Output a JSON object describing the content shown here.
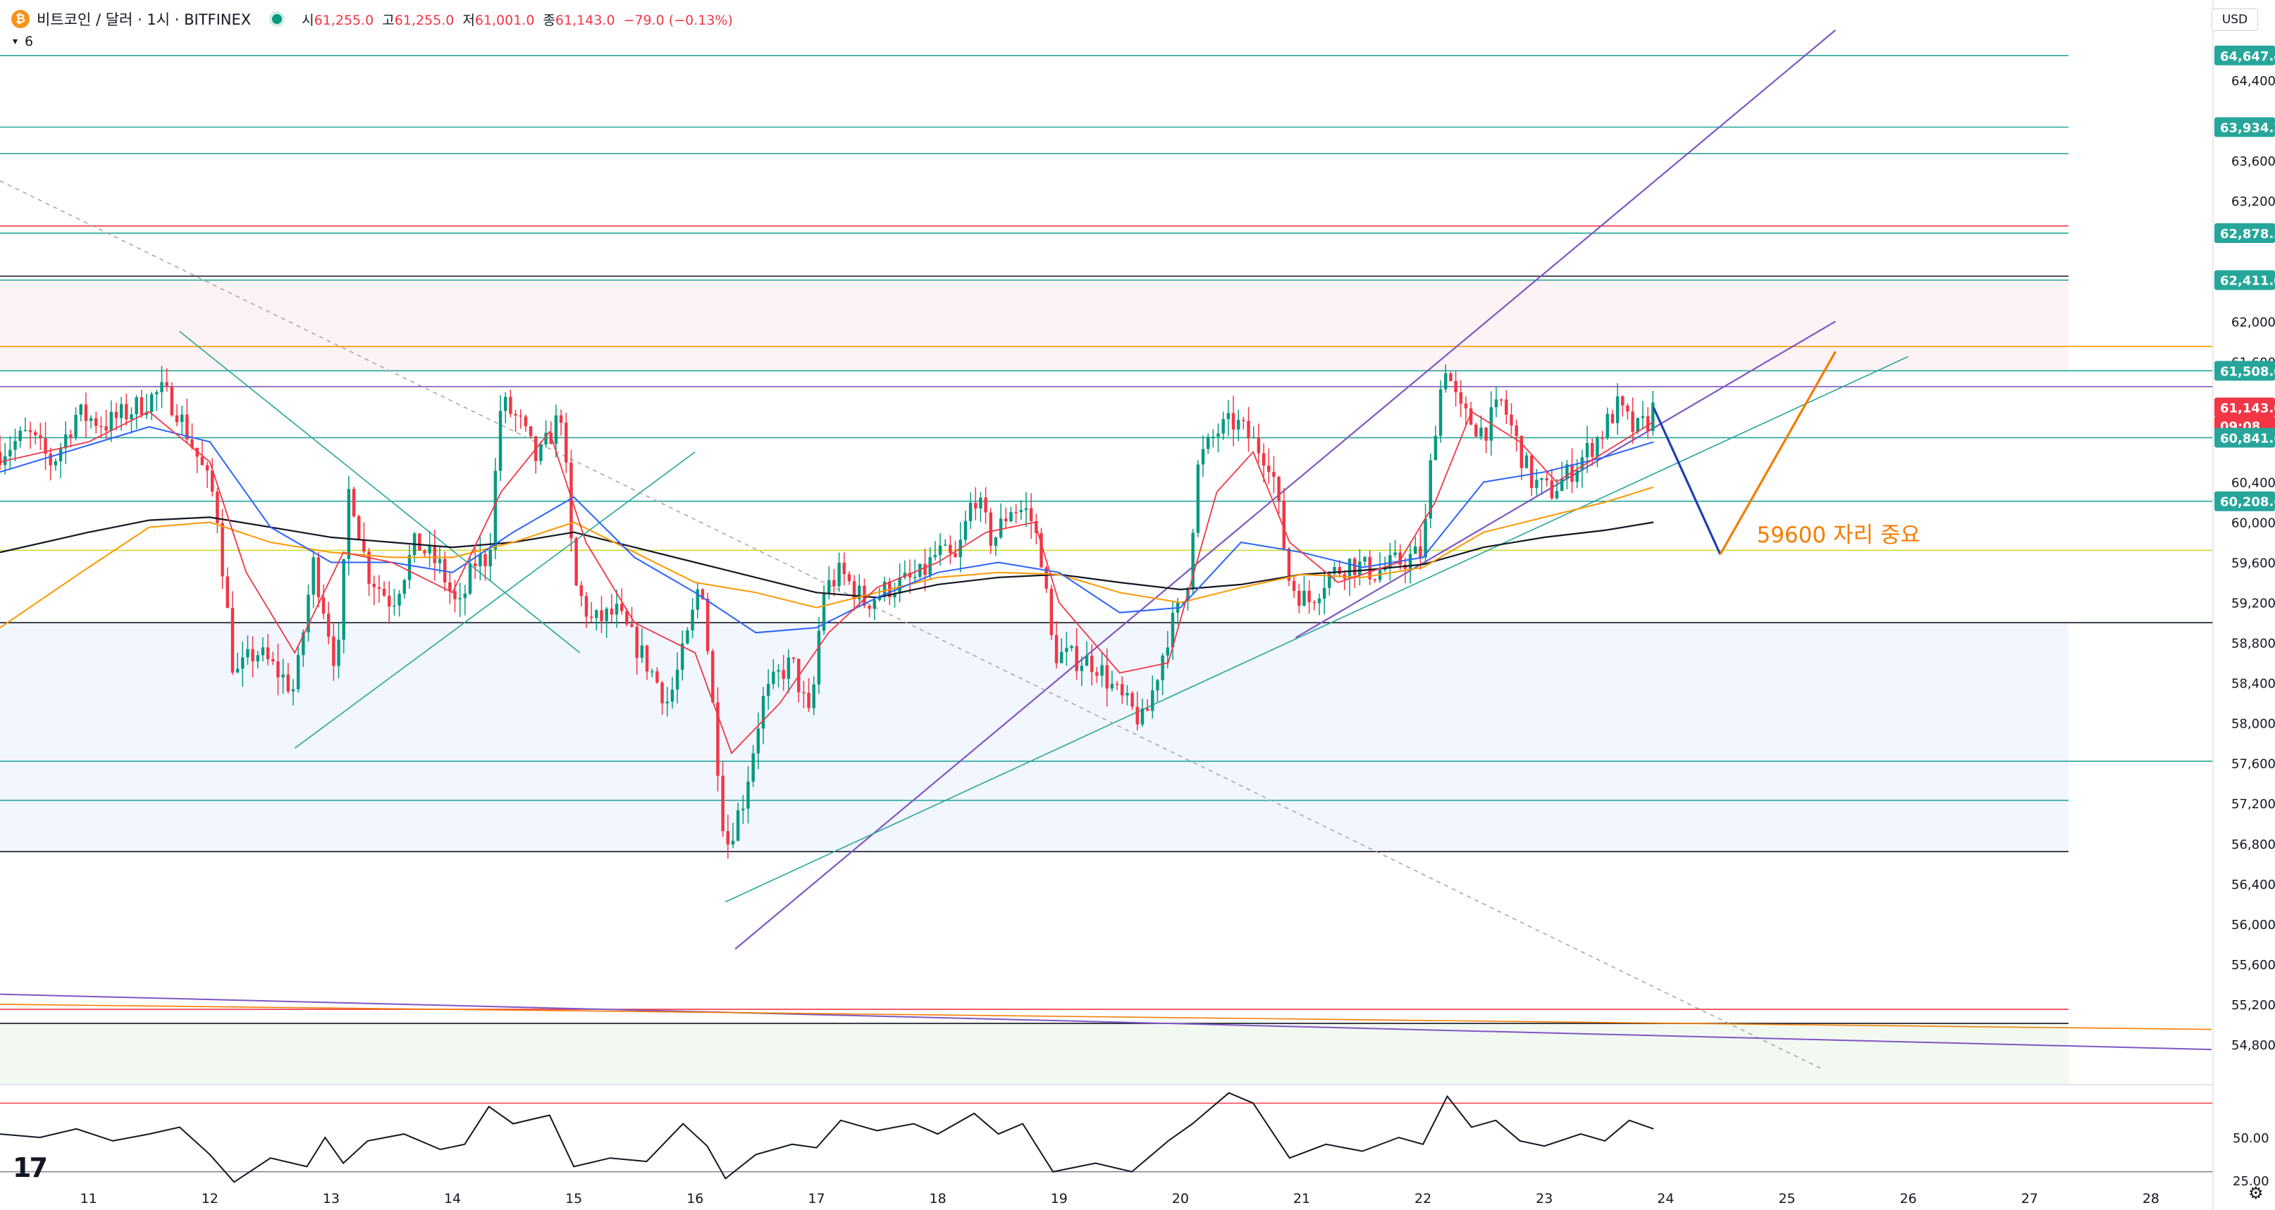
{
  "header": {
    "coin_icon": "bitcoin-icon",
    "symbol": "비트코인 / 달러 · 1시 · BITFINEX",
    "market_status_color": "#089981",
    "open_label": "시",
    "open_value": "61,255.0",
    "high_label": "고",
    "high_value": "61,255.0",
    "low_label": "저",
    "low_value": "61,001.0",
    "close_label": "종",
    "close_value": "61,143.0",
    "change": "−79.0 (−0.13%)"
  },
  "indicator_toggle": {
    "icon": "chevron-down-icon",
    "count": "6"
  },
  "currency_button": "USD",
  "logo_text": "17",
  "settings_icon": "gear-icon",
  "colors": {
    "up": "#089981",
    "down": "#f23645",
    "ema_blue": "#2962ff",
    "ema_orange": "#ff9800",
    "ema_black": "#131722",
    "channel": "#7e57c2",
    "annotation": "#f57c00"
  },
  "chart_data": {
    "type": "candlestick",
    "x_axis_labels": [
      "11",
      "12",
      "13",
      "14",
      "15",
      "16",
      "17",
      "18",
      "19",
      "20",
      "21",
      "22",
      "23",
      "24",
      "25",
      "26",
      "27",
      "28"
    ],
    "x_domain_days": [
      10.27,
      28.5
    ],
    "ylim": [
      54400,
      65200
    ],
    "y_ticks": [
      "64,400.0",
      "63,600.0",
      "63,200.0",
      "62,000.0",
      "61,600.0",
      "60,400.0",
      "60,000.0",
      "59,600.0",
      "59,200.0",
      "58,800.0",
      "58,400.0",
      "58,000.0",
      "57,600.0",
      "57,200.0",
      "56,800.0",
      "56,400.0",
      "56,000.0",
      "55,600.0",
      "55,200.0",
      "54,800.0"
    ],
    "y_tick_values": [
      64400,
      63600,
      63200,
      62000,
      61600,
      60400,
      60000,
      59600,
      59200,
      58800,
      58400,
      58000,
      57600,
      57200,
      56800,
      56400,
      56000,
      55600,
      55200,
      54800
    ],
    "price_labels": [
      {
        "text": "64,647.4",
        "value": 64647.4,
        "color": "#26a69a"
      },
      {
        "text": "63,934.2",
        "value": 63934.2,
        "color": "#26a69a"
      },
      {
        "text": "62,878.3",
        "value": 62878.3,
        "color": "#26a69a"
      },
      {
        "text": "62,411.0",
        "value": 62411.0,
        "color": "#26a69a"
      },
      {
        "text": "61,508.0",
        "value": 61508.0,
        "color": "#26a69a"
      },
      {
        "text": "61,143.0",
        "value": 61143.0,
        "color": "#f23645"
      },
      {
        "text": "09:08",
        "value": 60960,
        "color": "#f23645"
      },
      {
        "text": "60,841.6",
        "value": 60841.6,
        "color": "#26a69a"
      },
      {
        "text": "60,208.6",
        "value": 60208.6,
        "color": "#26a69a"
      }
    ],
    "horizontal_levels": [
      {
        "value": 64647.4,
        "color": "#26a69a"
      },
      {
        "value": 63934.2,
        "color": "#26a69a"
      },
      {
        "value": 63670,
        "color": "#26a69a"
      },
      {
        "value": 62950,
        "color": "#f23645"
      },
      {
        "value": 62878.3,
        "color": "#26a69a"
      },
      {
        "value": 62450,
        "color": "#131722"
      },
      {
        "value": 62411.0,
        "color": "#26a69a"
      },
      {
        "value": 61750,
        "color": "#ff9800"
      },
      {
        "value": 61508.0,
        "color": "#26a69a"
      },
      {
        "value": 61350,
        "color": "#7e57c2"
      },
      {
        "value": 60841.6,
        "color": "#26a69a"
      },
      {
        "value": 60208.6,
        "color": "#26a69a"
      },
      {
        "value": 59720,
        "color": "#cddc39"
      },
      {
        "value": 59000,
        "color": "#131722"
      },
      {
        "value": 57620,
        "color": "#26a69a"
      },
      {
        "value": 57230,
        "color": "#26a69a"
      },
      {
        "value": 56720,
        "color": "#131722"
      },
      {
        "value": 55150,
        "color": "#f23645"
      },
      {
        "value": 55010,
        "color": "#131722"
      }
    ],
    "zones": [
      {
        "from": 61510,
        "to": 62411,
        "color": "rgba(242,54,69,0.06)"
      },
      {
        "from": 56720,
        "to": 59000,
        "color": "rgba(41,98,255,0.06)"
      },
      {
        "from": 54400,
        "to": 55010,
        "color": "rgba(76,175,80,0.08)"
      }
    ],
    "trendlines": [
      {
        "from": [
          16.33,
          55750
        ],
        "to": [
          25.4,
          64900
        ],
        "color": "#7e57c2",
        "width": 2.2
      },
      {
        "from": [
          20.95,
          58850
        ],
        "to": [
          25.4,
          62000
        ],
        "color": "#7e57c2",
        "width": 2.2
      },
      {
        "from": [
          16.25,
          56220
        ],
        "to": [
          26.0,
          61650
        ],
        "color": "#26a69a",
        "width": 1.6
      },
      {
        "from": [
          12.7,
          57750
        ],
        "to": [
          16.0,
          60700
        ],
        "color": "#26a69a",
        "width": 1.6
      },
      {
        "from": [
          11.75,
          61900
        ],
        "to": [
          15.05,
          58700
        ],
        "color": "#26a69a",
        "width": 1.6
      },
      {
        "from": [
          10.27,
          63400
        ],
        "to": [
          25.3,
          54550
        ],
        "color": "#9e9e9e",
        "width": 1.4,
        "dash": true
      },
      {
        "from": [
          10.27,
          55300
        ],
        "to": [
          28.5,
          54750
        ],
        "color": "#7e57c2",
        "width": 2
      },
      {
        "from": [
          10.27,
          55200
        ],
        "to": [
          28.5,
          54950
        ],
        "color": "#f57c00",
        "width": 1.6
      }
    ],
    "forecast_path": [
      {
        "from": [
          23.9,
          61143
        ],
        "to": [
          24.45,
          59680
        ],
        "color": "#1e3fae"
      },
      {
        "from": [
          24.45,
          59680
        ],
        "to": [
          25.4,
          61700
        ],
        "color": "#f57c00"
      }
    ],
    "annotation": {
      "text": "59600 자리 중요",
      "x": 24.75,
      "y": 59800
    },
    "pivots": [
      [
        10.27,
        60700
      ],
      [
        10.5,
        60880
      ],
      [
        10.7,
        60580
      ],
      [
        10.9,
        61080
      ],
      [
        11.15,
        60980
      ],
      [
        11.4,
        61150
      ],
      [
        11.6,
        61300
      ],
      [
        11.72,
        61150
      ],
      [
        11.88,
        60700
      ],
      [
        12.05,
        60200
      ],
      [
        12.2,
        58450
      ],
      [
        12.38,
        58720
      ],
      [
        12.55,
        58520
      ],
      [
        12.7,
        58320
      ],
      [
        12.85,
        59600
      ],
      [
        12.95,
        59100
      ],
      [
        13.05,
        58500
      ],
      [
        13.15,
        60400
      ],
      [
        13.3,
        59500
      ],
      [
        13.5,
        59200
      ],
      [
        13.7,
        59800
      ],
      [
        13.9,
        59550
      ],
      [
        14.05,
        59100
      ],
      [
        14.18,
        59600
      ],
      [
        14.3,
        59650
      ],
      [
        14.4,
        61200
      ],
      [
        14.55,
        61000
      ],
      [
        14.7,
        60600
      ],
      [
        14.9,
        61100
      ],
      [
        15.0,
        59400
      ],
      [
        15.15,
        59000
      ],
      [
        15.35,
        59100
      ],
      [
        15.6,
        58600
      ],
      [
        15.78,
        58200
      ],
      [
        15.95,
        58900
      ],
      [
        16.05,
        59500
      ],
      [
        16.15,
        58100
      ],
      [
        16.25,
        56750
      ],
      [
        16.4,
        57250
      ],
      [
        16.55,
        58200
      ],
      [
        16.7,
        58500
      ],
      [
        16.8,
        58600
      ],
      [
        16.95,
        58000
      ],
      [
        17.05,
        59300
      ],
      [
        17.2,
        59500
      ],
      [
        17.4,
        59200
      ],
      [
        17.6,
        59350
      ],
      [
        17.85,
        59450
      ],
      [
        18.0,
        59700
      ],
      [
        18.15,
        59600
      ],
      [
        18.3,
        60300
      ],
      [
        18.45,
        59800
      ],
      [
        18.6,
        60150
      ],
      [
        18.75,
        60100
      ],
      [
        18.85,
        59700
      ],
      [
        18.95,
        58700
      ],
      [
        19.1,
        58650
      ],
      [
        19.3,
        58600
      ],
      [
        19.5,
        58250
      ],
      [
        19.7,
        58000
      ],
      [
        19.9,
        58900
      ],
      [
        20.05,
        59300
      ],
      [
        20.15,
        60600
      ],
      [
        20.3,
        60900
      ],
      [
        20.45,
        61000
      ],
      [
        20.6,
        60800
      ],
      [
        20.75,
        60600
      ],
      [
        20.9,
        59400
      ],
      [
        21.05,
        59200
      ],
      [
        21.2,
        59450
      ],
      [
        21.4,
        59600
      ],
      [
        21.6,
        59500
      ],
      [
        21.8,
        59600
      ],
      [
        22.0,
        59700
      ],
      [
        22.08,
        60800
      ],
      [
        22.18,
        61600
      ],
      [
        22.3,
        61100
      ],
      [
        22.5,
        60900
      ],
      [
        22.65,
        61200
      ],
      [
        22.8,
        60700
      ],
      [
        22.9,
        60400
      ],
      [
        23.05,
        60300
      ],
      [
        23.25,
        60550
      ],
      [
        23.45,
        60850
      ],
      [
        23.6,
        61150
      ],
      [
        23.75,
        60900
      ],
      [
        23.85,
        61000
      ],
      [
        23.9,
        61143
      ]
    ],
    "ema_blue": [
      [
        10.27,
        60500
      ],
      [
        11.5,
        60950
      ],
      [
        12.0,
        60800
      ],
      [
        12.5,
        59950
      ],
      [
        13.0,
        59600
      ],
      [
        13.5,
        59600
      ],
      [
        14.0,
        59500
      ],
      [
        14.5,
        59900
      ],
      [
        15.0,
        60250
      ],
      [
        15.5,
        59650
      ],
      [
        16.0,
        59300
      ],
      [
        16.5,
        58900
      ],
      [
        17.0,
        58950
      ],
      [
        17.5,
        59250
      ],
      [
        18.0,
        59500
      ],
      [
        18.5,
        59600
      ],
      [
        19.0,
        59500
      ],
      [
        19.5,
        59100
      ],
      [
        20.0,
        59150
      ],
      [
        20.5,
        59800
      ],
      [
        21.0,
        59700
      ],
      [
        21.5,
        59550
      ],
      [
        22.0,
        59650
      ],
      [
        22.5,
        60400
      ],
      [
        23.0,
        60500
      ],
      [
        23.5,
        60650
      ],
      [
        23.9,
        60800
      ]
    ],
    "ema_orange": [
      [
        10.27,
        58950
      ],
      [
        11.0,
        59550
      ],
      [
        11.5,
        59950
      ],
      [
        12.0,
        60000
      ],
      [
        12.5,
        59800
      ],
      [
        13.0,
        59700
      ],
      [
        13.5,
        59650
      ],
      [
        14.0,
        59650
      ],
      [
        14.5,
        59800
      ],
      [
        15.0,
        60000
      ],
      [
        15.5,
        59700
      ],
      [
        16.0,
        59400
      ],
      [
        16.5,
        59300
      ],
      [
        17.0,
        59150
      ],
      [
        17.5,
        59300
      ],
      [
        18.0,
        59450
      ],
      [
        18.5,
        59500
      ],
      [
        19.0,
        59480
      ],
      [
        19.5,
        59300
      ],
      [
        20.0,
        59200
      ],
      [
        20.5,
        59350
      ],
      [
        21.0,
        59480
      ],
      [
        21.5,
        59450
      ],
      [
        22.0,
        59550
      ],
      [
        22.5,
        59900
      ],
      [
        23.0,
        60050
      ],
      [
        23.5,
        60200
      ],
      [
        23.9,
        60350
      ]
    ],
    "ema_black": [
      [
        10.27,
        59700
      ],
      [
        11.0,
        59900
      ],
      [
        11.5,
        60020
      ],
      [
        12.0,
        60050
      ],
      [
        12.5,
        59950
      ],
      [
        13.0,
        59850
      ],
      [
        13.5,
        59800
      ],
      [
        14.0,
        59750
      ],
      [
        14.5,
        59800
      ],
      [
        15.0,
        59900
      ],
      [
        15.5,
        59750
      ],
      [
        16.0,
        59600
      ],
      [
        16.5,
        59450
      ],
      [
        17.0,
        59300
      ],
      [
        17.5,
        59250
      ],
      [
        18.0,
        59380
      ],
      [
        18.5,
        59450
      ],
      [
        19.0,
        59480
      ],
      [
        19.5,
        59400
      ],
      [
        20.0,
        59330
      ],
      [
        20.5,
        59380
      ],
      [
        21.0,
        59480
      ],
      [
        21.5,
        59520
      ],
      [
        22.0,
        59580
      ],
      [
        22.5,
        59750
      ],
      [
        23.0,
        59850
      ],
      [
        23.5,
        59920
      ],
      [
        23.9,
        60000
      ]
    ],
    "ema_red": [
      [
        10.27,
        60600
      ],
      [
        11.0,
        60800
      ],
      [
        11.5,
        61100
      ],
      [
        12.0,
        60600
      ],
      [
        12.3,
        59500
      ],
      [
        12.7,
        58700
      ],
      [
        13.1,
        59700
      ],
      [
        13.5,
        59600
      ],
      [
        14.0,
        59300
      ],
      [
        14.4,
        60300
      ],
      [
        14.8,
        60900
      ],
      [
        15.1,
        59800
      ],
      [
        15.5,
        59000
      ],
      [
        16.0,
        58700
      ],
      [
        16.3,
        57700
      ],
      [
        16.7,
        58200
      ],
      [
        17.1,
        58900
      ],
      [
        17.5,
        59350
      ],
      [
        18.0,
        59600
      ],
      [
        18.4,
        59900
      ],
      [
        18.8,
        60000
      ],
      [
        19.0,
        59200
      ],
      [
        19.5,
        58500
      ],
      [
        19.9,
        58600
      ],
      [
        20.3,
        60300
      ],
      [
        20.6,
        60700
      ],
      [
        20.9,
        59800
      ],
      [
        21.3,
        59400
      ],
      [
        21.8,
        59600
      ],
      [
        22.1,
        60200
      ],
      [
        22.4,
        61100
      ],
      [
        22.8,
        60800
      ],
      [
        23.1,
        60400
      ],
      [
        23.5,
        60700
      ],
      [
        23.9,
        61000
      ]
    ],
    "rsi": {
      "ylim": [
        20,
        80
      ],
      "ticks": [
        "50.00",
        "25.00"
      ],
      "tick_values": [
        50,
        25
      ],
      "band": [
        30,
        70
      ],
      "values": [
        [
          10.27,
          52
        ],
        [
          10.6,
          50
        ],
        [
          10.9,
          55
        ],
        [
          11.2,
          48
        ],
        [
          11.5,
          52
        ],
        [
          11.75,
          56
        ],
        [
          12.0,
          40
        ],
        [
          12.2,
          24
        ],
        [
          12.5,
          38
        ],
        [
          12.8,
          33
        ],
        [
          12.95,
          50
        ],
        [
          13.1,
          35
        ],
        [
          13.3,
          48
        ],
        [
          13.6,
          52
        ],
        [
          13.9,
          43
        ],
        [
          14.1,
          46
        ],
        [
          14.3,
          68
        ],
        [
          14.5,
          58
        ],
        [
          14.8,
          63
        ],
        [
          15.0,
          33
        ],
        [
          15.3,
          38
        ],
        [
          15.6,
          36
        ],
        [
          15.9,
          58
        ],
        [
          16.1,
          45
        ],
        [
          16.25,
          26
        ],
        [
          16.5,
          40
        ],
        [
          16.8,
          46
        ],
        [
          17.0,
          44
        ],
        [
          17.2,
          60
        ],
        [
          17.5,
          54
        ],
        [
          17.8,
          58
        ],
        [
          18.0,
          52
        ],
        [
          18.3,
          64
        ],
        [
          18.5,
          52
        ],
        [
          18.7,
          58
        ],
        [
          18.95,
          30
        ],
        [
          19.3,
          35
        ],
        [
          19.6,
          30
        ],
        [
          19.9,
          48
        ],
        [
          20.1,
          58
        ],
        [
          20.4,
          76
        ],
        [
          20.6,
          70
        ],
        [
          20.9,
          38
        ],
        [
          21.2,
          46
        ],
        [
          21.5,
          42
        ],
        [
          21.8,
          50
        ],
        [
          22.0,
          46
        ],
        [
          22.2,
          74
        ],
        [
          22.4,
          56
        ],
        [
          22.6,
          60
        ],
        [
          22.8,
          48
        ],
        [
          23.0,
          45
        ],
        [
          23.3,
          52
        ],
        [
          23.5,
          48
        ],
        [
          23.7,
          60
        ],
        [
          23.9,
          55
        ]
      ]
    }
  }
}
